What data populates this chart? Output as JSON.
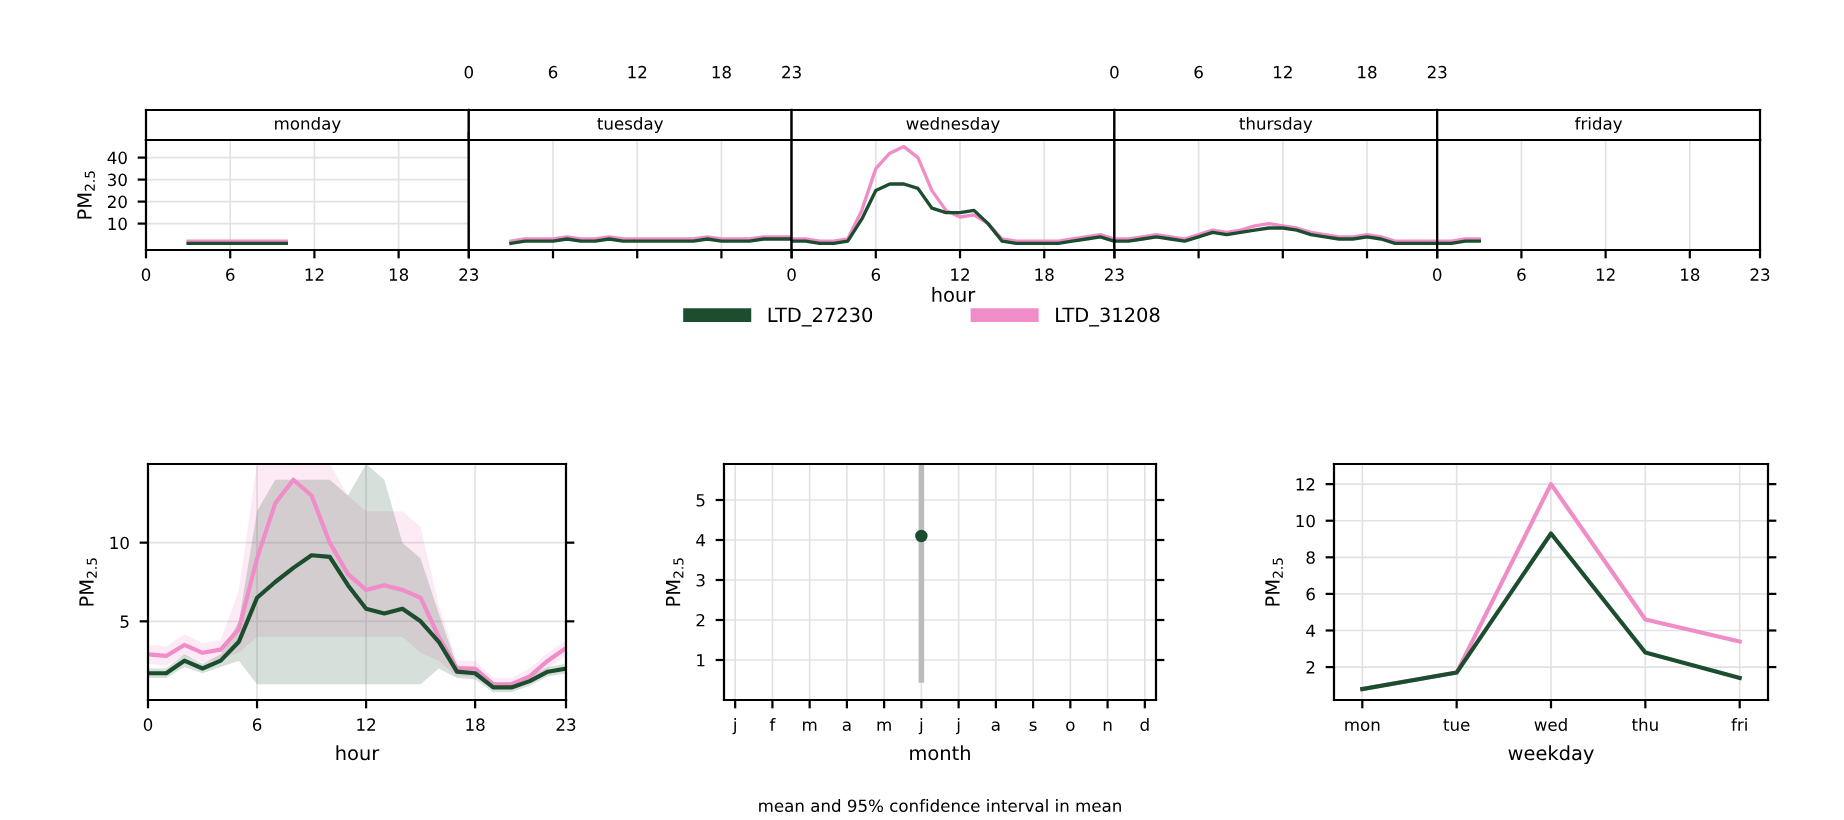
{
  "chart_data": [
    {
      "type": "line",
      "title": "monday",
      "ylabel": "PM$_{2.5}$",
      "xlim": [
        0,
        23
      ],
      "xticks": [
        0,
        6,
        12,
        18,
        23
      ],
      "ylim": [
        -2,
        48
      ],
      "yticks": [
        10,
        20,
        30,
        40
      ],
      "grid": true,
      "x": [
        3,
        4,
        5,
        6,
        7,
        8,
        9,
        10
      ],
      "series": [
        {
          "color": "#f08cc8",
          "values": [
            2,
            2,
            2,
            2,
            2,
            2,
            2,
            2
          ]
        },
        {
          "color": "#1b4d2e",
          "values": [
            1,
            1,
            1,
            1,
            1,
            1,
            1,
            1
          ]
        }
      ]
    },
    {
      "type": "line",
      "title": "tuesday",
      "x2lim": [
        0,
        23
      ],
      "x2ticks": [
        0,
        6,
        12,
        18,
        23
      ],
      "ylim": [
        -2,
        48
      ],
      "tick_labels": false,
      "grid": true,
      "x": [
        3,
        4,
        5,
        6,
        7,
        8,
        9,
        10,
        11,
        12,
        13,
        14,
        15,
        16,
        17,
        18,
        19,
        20,
        21,
        22,
        23
      ],
      "series": [
        {
          "color": "#f08cc8",
          "values": [
            2,
            3,
            3,
            3,
            4,
            3,
            3,
            4,
            3,
            3,
            3,
            3,
            3,
            3,
            4,
            3,
            3,
            3,
            4,
            4,
            4
          ]
        },
        {
          "color": "#1b4d2e",
          "values": [
            1,
            2,
            2,
            2,
            3,
            2,
            2,
            3,
            2,
            2,
            2,
            2,
            2,
            2,
            3,
            2,
            2,
            2,
            3,
            3,
            3
          ]
        }
      ]
    },
    {
      "type": "line",
      "title": "wednesday",
      "xlabel": "hour",
      "xlim": [
        0,
        23
      ],
      "xticks": [
        0,
        6,
        12,
        18,
        23
      ],
      "ylim": [
        -2,
        48
      ],
      "tick_labels": "x",
      "grid": true,
      "x": [
        0,
        1,
        2,
        3,
        4,
        5,
        6,
        7,
        8,
        9,
        10,
        11,
        12,
        13,
        14,
        15,
        16,
        17,
        18,
        19,
        20,
        21,
        22,
        23
      ],
      "series": [
        {
          "color": "#f08cc8",
          "values": [
            3,
            3,
            2,
            2,
            3,
            16,
            35,
            42,
            45,
            40,
            25,
            16,
            13,
            14,
            10,
            3,
            2,
            2,
            2,
            2,
            3,
            4,
            5,
            3
          ]
        },
        {
          "color": "#1b4d2e",
          "values": [
            2,
            2,
            1,
            1,
            2,
            12,
            25,
            28,
            28,
            26,
            17,
            15,
            15,
            16,
            10,
            2,
            1,
            1,
            1,
            1,
            2,
            3,
            4,
            2
          ]
        }
      ]
    },
    {
      "type": "line",
      "title": "thursday",
      "x2lim": [
        0,
        23
      ],
      "x2ticks": [
        0,
        6,
        12,
        18,
        23
      ],
      "ylim": [
        -2,
        48
      ],
      "tick_labels": false,
      "grid": true,
      "x": [
        0,
        1,
        2,
        3,
        4,
        5,
        6,
        7,
        8,
        9,
        10,
        11,
        12,
        13,
        14,
        15,
        16,
        17,
        18,
        19,
        20,
        21,
        22,
        23
      ],
      "series": [
        {
          "color": "#f08cc8",
          "values": [
            3,
            3,
            4,
            5,
            4,
            3,
            5,
            7,
            6,
            7,
            9,
            10,
            9,
            8,
            6,
            5,
            4,
            4,
            5,
            4,
            2,
            2,
            2,
            2
          ]
        },
        {
          "color": "#1b4d2e",
          "values": [
            2,
            2,
            3,
            4,
            3,
            2,
            4,
            6,
            5,
            6,
            7,
            8,
            8,
            7,
            5,
            4,
            3,
            3,
            4,
            3,
            1,
            1,
            1,
            1
          ]
        }
      ]
    },
    {
      "type": "line",
      "title": "friday",
      "xlim": [
        0,
        23
      ],
      "xticks": [
        0,
        6,
        12,
        18,
        23
      ],
      "ylim": [
        -2,
        48
      ],
      "tick_labels": "x",
      "grid": true,
      "x": [
        0,
        1,
        2,
        3
      ],
      "series": [
        {
          "color": "#f08cc8",
          "values": [
            2,
            2,
            3,
            3
          ]
        },
        {
          "color": "#1b4d2e",
          "values": [
            1,
            1,
            2,
            2
          ]
        }
      ]
    },
    {
      "type": "line",
      "xlabel": "hour",
      "ylabel": "PM$_{2.5}$",
      "xlim": [
        0,
        23
      ],
      "xticks": [
        0,
        6,
        12,
        18,
        23
      ],
      "ylim": [
        0,
        15
      ],
      "yticks": [
        5,
        10
      ],
      "grid": true,
      "legend": "top",
      "x": [
        0,
        1,
        2,
        3,
        4,
        5,
        6,
        7,
        8,
        9,
        10,
        11,
        12,
        13,
        14,
        15,
        16,
        17,
        18,
        19,
        20,
        21,
        22,
        23
      ],
      "series": [
        {
          "name": "LTD_31208",
          "color": "#f08cc8",
          "values": [
            2.9,
            2.8,
            3.5,
            3,
            3.2,
            4.5,
            9,
            12.5,
            14,
            13,
            10,
            8,
            7,
            7.3,
            7,
            6.5,
            4,
            2,
            2,
            1,
            1,
            1.5,
            2.5,
            3.3
          ],
          "lower": [
            2.3,
            2.2,
            2.8,
            2.4,
            2.6,
            3,
            4,
            4,
            4,
            4,
            4,
            4,
            4,
            4,
            4,
            3,
            2.5,
            1.5,
            1.5,
            0.7,
            0.7,
            1.1,
            2,
            2.8
          ],
          "upper": [
            3.5,
            3.4,
            4.2,
            3.6,
            3.8,
            7,
            15,
            15,
            15,
            15,
            15,
            13,
            12,
            12,
            12,
            11,
            6,
            2.5,
            2.5,
            1.4,
            1.4,
            2,
            3,
            3.8
          ]
        },
        {
          "name": "LTD_27230",
          "color": "#1b4d2e",
          "values": [
            1.7,
            1.7,
            2.5,
            2,
            2.5,
            3.7,
            6.5,
            7.5,
            8.4,
            9.2,
            9.1,
            7.3,
            5.8,
            5.5,
            5.8,
            5,
            3.7,
            1.8,
            1.7,
            0.8,
            0.8,
            1.2,
            1.8,
            2
          ],
          "lower": [
            1.4,
            1.4,
            2.1,
            1.7,
            2.1,
            2.5,
            1,
            1,
            1,
            1,
            1,
            1,
            1,
            1,
            1,
            1,
            2,
            1.4,
            1.3,
            0.5,
            0.5,
            0.9,
            1.5,
            1.7
          ],
          "upper": [
            2,
            2,
            2.9,
            2.3,
            2.9,
            5,
            12,
            14,
            14,
            14,
            14,
            13,
            15,
            14,
            10,
            9,
            5.5,
            2.2,
            2.1,
            1.1,
            1.1,
            1.5,
            2.1,
            2.3
          ]
        }
      ]
    },
    {
      "type": "scatter",
      "xlabel": "month",
      "ylabel": "PM$_{2.5}$",
      "categories": [
        "j",
        "f",
        "m",
        "a",
        "m",
        "j",
        "j",
        "a",
        "s",
        "o",
        "n",
        "d"
      ],
      "ylim": [
        0,
        5.9
      ],
      "yticks": [
        1,
        2,
        3,
        4,
        5
      ],
      "grid": true,
      "marker": "circle",
      "series": [
        {
          "color": "#1b4d2e",
          "values": [
            null,
            null,
            null,
            null,
            null,
            4.1,
            null,
            null,
            null,
            null,
            null,
            null
          ],
          "errors": [
            null,
            null,
            null,
            null,
            null,
            [
              0.5,
              5.9
            ],
            null,
            null,
            null,
            null,
            null,
            null
          ]
        }
      ],
      "annotations": [
        "mean and 95% confidence interval in mean"
      ]
    },
    {
      "type": "line",
      "xlabel": "weekday",
      "ylabel": "PM$_{2.5}$",
      "categories": [
        "mon",
        "tue",
        "wed",
        "thu",
        "fri"
      ],
      "ylim": [
        0.2,
        13.1
      ],
      "yticks": [
        2,
        4,
        6,
        8,
        10,
        12
      ],
      "grid": true,
      "series": [
        {
          "color": "#f08cc8",
          "values": [
            0.8,
            1.7,
            12,
            4.6,
            3.4
          ]
        },
        {
          "color": "#1b4d2e",
          "values": [
            0.8,
            1.7,
            9.3,
            2.8,
            1.4
          ]
        }
      ]
    }
  ]
}
